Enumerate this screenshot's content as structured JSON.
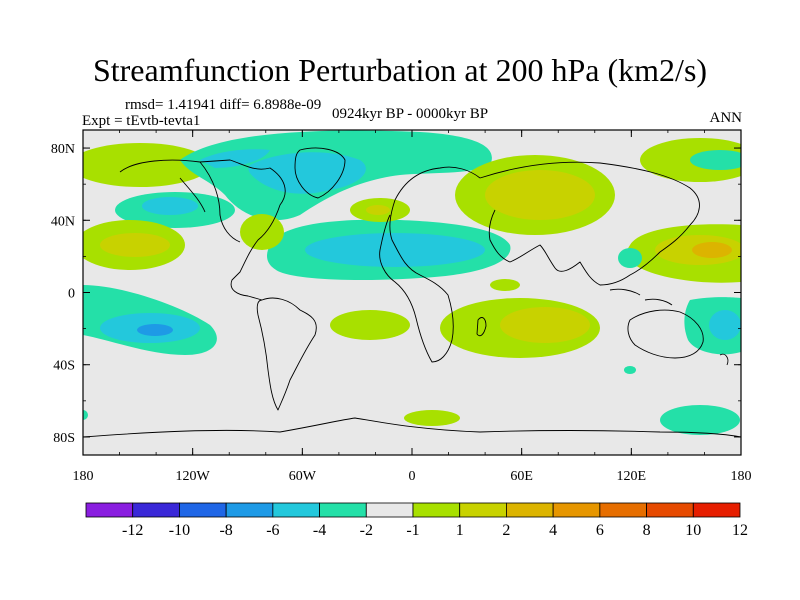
{
  "title": "Streamfunction Perturbation at 200 hPa (km2/s)",
  "stats": "rmsd= 1.41941 diff= 6.8988e-09",
  "experiment": "Expt = tEvtb-tevta1",
  "period": "0924kyr BP - 0000kyr BP",
  "season": "ANN",
  "map": {
    "projection": "cylindrical-equidistant",
    "lon_range": [
      -180,
      180
    ],
    "lat_range": [
      -90,
      90
    ],
    "lat_ticks": [
      {
        "value": 80,
        "label": "80N"
      },
      {
        "value": 40,
        "label": "40N"
      },
      {
        "value": 0,
        "label": "0"
      },
      {
        "value": -40,
        "label": "40S"
      },
      {
        "value": -80,
        "label": "80S"
      }
    ],
    "lon_ticks": [
      {
        "value": -180,
        "label": "180"
      },
      {
        "value": -120,
        "label": "120W"
      },
      {
        "value": -60,
        "label": "60W"
      },
      {
        "value": 0,
        "label": "0"
      },
      {
        "value": 60,
        "label": "60E"
      },
      {
        "value": 120,
        "label": "120E"
      },
      {
        "value": 180,
        "label": "180"
      }
    ],
    "colorbar": {
      "colors": [
        "#8a1ee0",
        "#3a28d8",
        "#1f66e6",
        "#1e9ae6",
        "#23c8dc",
        "#24e0a8",
        "#e8e8e8",
        "#a8e000",
        "#c8d200",
        "#dcb400",
        "#e69600",
        "#e66e00",
        "#e64a00",
        "#e61e00"
      ],
      "labels": [
        "-12",
        "-10",
        "-8",
        "-6",
        "-4",
        "-2",
        "-1",
        "1",
        "2",
        "4",
        "6",
        "8",
        "10",
        "12"
      ]
    }
  }
}
